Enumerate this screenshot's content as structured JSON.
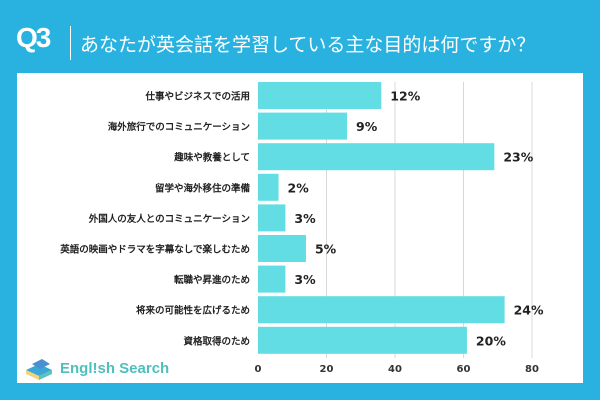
{
  "header": {
    "question_number": "Q3",
    "title": "あなたが英会話を学習している主な目的は何ですか？"
  },
  "logo": {
    "text": "Engl!sh Search"
  },
  "chart_data": {
    "type": "bar",
    "orientation": "horizontal",
    "categories": [
      "仕事やビジネスでの活用",
      "海外旅行でのコミュニケーション",
      "趣味や教養として",
      "留学や海外移住の準備",
      "外国人の友人とのコミュニケーション",
      "英語の映画やドラマを字幕なしで楽しむため",
      "転職や昇進のため",
      "将来の可能性を広げるため",
      "資格取得のため"
    ],
    "values": [
      36,
      26,
      69,
      6,
      8,
      14,
      8,
      72,
      61
    ],
    "data_labels": [
      "12%",
      "9%",
      "23%",
      "2%",
      "3%",
      "5%",
      "3%",
      "24%",
      "20%"
    ],
    "xlim": [
      0,
      80
    ],
    "xticks": [
      "0",
      "20",
      "40",
      "60",
      "80"
    ],
    "grid": true,
    "bar_color": "#62dde3",
    "grid_color": "#d8d8d8"
  }
}
